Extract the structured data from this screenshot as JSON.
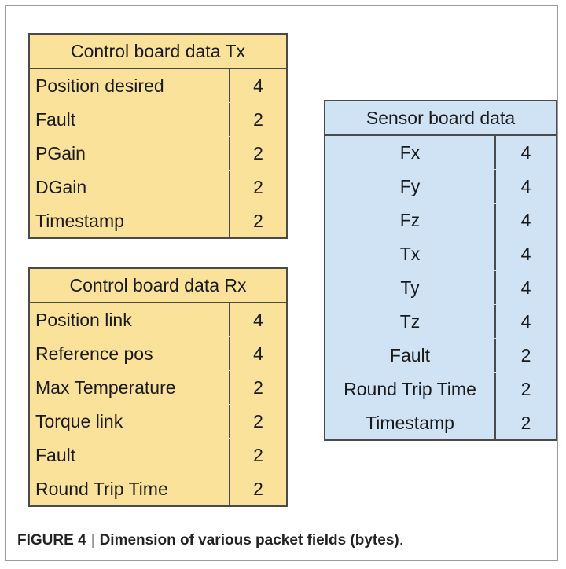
{
  "tables": {
    "tx": {
      "title": "Control board data Tx",
      "rows": [
        {
          "name": "Position desired",
          "bytes": "4"
        },
        {
          "name": "Fault",
          "bytes": "2"
        },
        {
          "name": "PGain",
          "bytes": "2"
        },
        {
          "name": "DGain",
          "bytes": "2"
        },
        {
          "name": "Timestamp",
          "bytes": "2"
        }
      ],
      "color": "#fbe29a"
    },
    "rx": {
      "title": "Control board data Rx",
      "rows": [
        {
          "name": "Position link",
          "bytes": "4"
        },
        {
          "name": "Reference pos",
          "bytes": "4"
        },
        {
          "name": "Max Temperature",
          "bytes": "2"
        },
        {
          "name": "Torque link",
          "bytes": "2"
        },
        {
          "name": "Fault",
          "bytes": "2"
        },
        {
          "name": "Round Trip Time",
          "bytes": "2"
        }
      ],
      "color": "#fbe29a"
    },
    "sensor": {
      "title": "Sensor board data",
      "rows": [
        {
          "name": "Fx",
          "bytes": "4"
        },
        {
          "name": "Fy",
          "bytes": "4"
        },
        {
          "name": "Fz",
          "bytes": "4"
        },
        {
          "name": "Tx",
          "bytes": "4"
        },
        {
          "name": "Ty",
          "bytes": "4"
        },
        {
          "name": "Tz",
          "bytes": "4"
        },
        {
          "name": "Fault",
          "bytes": "2"
        },
        {
          "name": "Round Trip Time",
          "bytes": "2"
        },
        {
          "name": "Timestamp",
          "bytes": "2"
        }
      ],
      "color": "#cfe3f4"
    }
  },
  "caption": {
    "label": "FIGURE 4",
    "separator": "|",
    "text": "Dimension of various packet fields (bytes)",
    "end": "."
  }
}
